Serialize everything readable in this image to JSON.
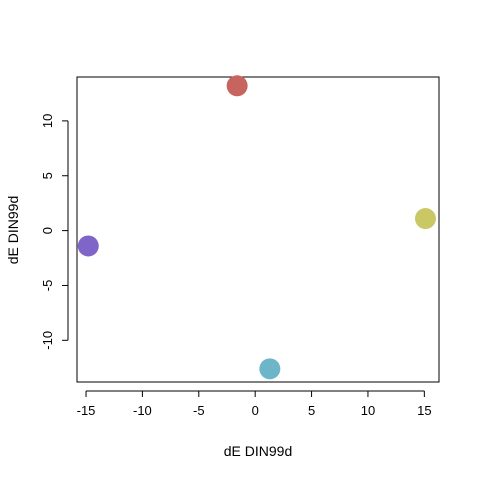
{
  "chart_data": {
    "type": "scatter",
    "title": "",
    "xlabel": "dE DIN99d",
    "ylabel": "dE DIN99d",
    "xlim": [
      -15.8,
      16.3
    ],
    "ylim": [
      -13.8,
      14.0
    ],
    "x_ticks": [
      -15,
      -10,
      -5,
      0,
      5,
      10,
      15
    ],
    "y_ticks": [
      -10,
      -5,
      0,
      5,
      10
    ],
    "grid": false,
    "legend": "none",
    "points": [
      {
        "x": -1.6,
        "y": 13.2,
        "color": "#c8645f"
      },
      {
        "x": 15.1,
        "y": 1.1,
        "color": "#c9c865"
      },
      {
        "x": -14.8,
        "y": -1.4,
        "color": "#8065c9"
      },
      {
        "x": 1.3,
        "y": -12.6,
        "color": "#6db6c9"
      }
    ]
  }
}
